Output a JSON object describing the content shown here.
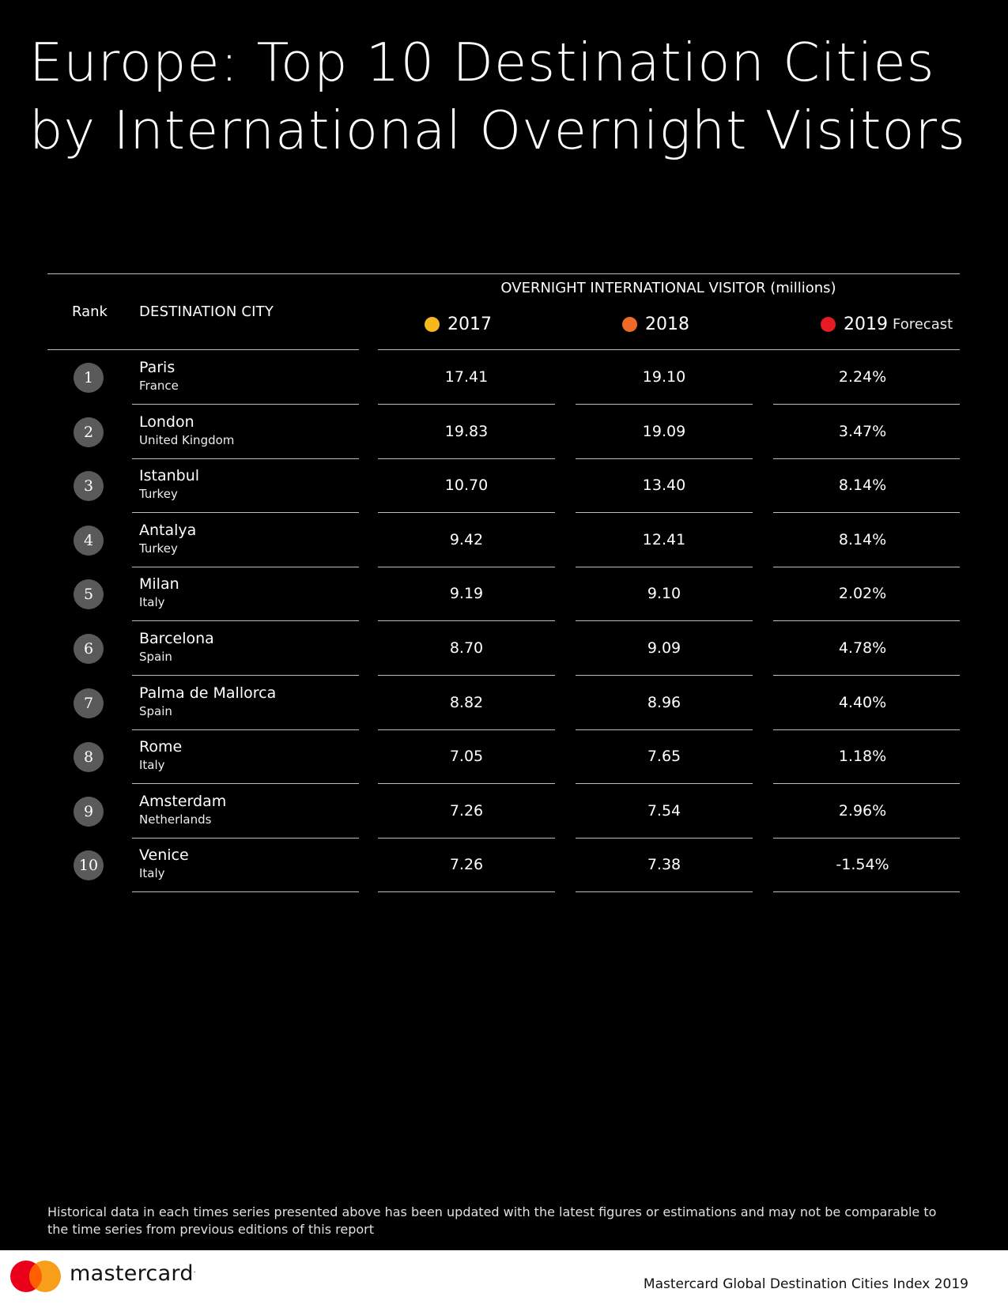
{
  "title": {
    "line1": "Europe: Top 10 Destination Cities",
    "line2": "by International Overnight Visitors"
  },
  "table": {
    "rank_header": "Rank",
    "city_header": "DESTINATION CITY",
    "group_header": "OVERNIGHT INTERNATIONAL VISITOR (millions)",
    "years": [
      {
        "label": "2017",
        "color": "#f5b91d",
        "suffix": ""
      },
      {
        "label": "2018",
        "color": "#ee6a26",
        "suffix": ""
      },
      {
        "label": "2019",
        "color": "#e51c23",
        "suffix": "Forecast"
      }
    ],
    "rows": [
      {
        "rank": "1",
        "city": "Paris",
        "country": "France",
        "v2017": "17.41",
        "v2018": "19.10",
        "v2019": "2.24%"
      },
      {
        "rank": "2",
        "city": "London",
        "country": "United Kingdom",
        "v2017": "19.83",
        "v2018": "19.09",
        "v2019": "3.47%"
      },
      {
        "rank": "3",
        "city": "Istanbul",
        "country": "Turkey",
        "v2017": "10.70",
        "v2018": "13.40",
        "v2019": "8.14%"
      },
      {
        "rank": "4",
        "city": "Antalya",
        "country": "Turkey",
        "v2017": "9.42",
        "v2018": "12.41",
        "v2019": "8.14%"
      },
      {
        "rank": "5",
        "city": "Milan",
        "country": "Italy",
        "v2017": "9.19",
        "v2018": "9.10",
        "v2019": "2.02%"
      },
      {
        "rank": "6",
        "city": "Barcelona",
        "country": "Spain",
        "v2017": "8.70",
        "v2018": "9.09",
        "v2019": "4.78%"
      },
      {
        "rank": "7",
        "city": "Palma de Mallorca",
        "country": "Spain",
        "v2017": "8.82",
        "v2018": "8.96",
        "v2019": "4.40%"
      },
      {
        "rank": "8",
        "city": "Rome",
        "country": "Italy",
        "v2017": "7.05",
        "v2018": "7.65",
        "v2019": "1.18%"
      },
      {
        "rank": "9",
        "city": "Amsterdam",
        "country": "Netherlands",
        "v2017": "7.26",
        "v2018": "7.54",
        "v2019": "2.96%"
      },
      {
        "rank": "10",
        "city": "Venice",
        "country": "Italy",
        "v2017": "7.26",
        "v2018": "7.38",
        "v2019": "-1.54%"
      }
    ]
  },
  "note": "Historical data in each times series presented above has been updated  with the latest figures or estimations and may not be comparable to the time series from previous editions of this report",
  "footer": {
    "brand": "mastercard",
    "logo_colors": {
      "left": "#eb001b",
      "right": "#f79e1b",
      "overlap": "#ff5f00"
    },
    "report": "Mastercard Global Destination Cities Index 2019"
  }
}
